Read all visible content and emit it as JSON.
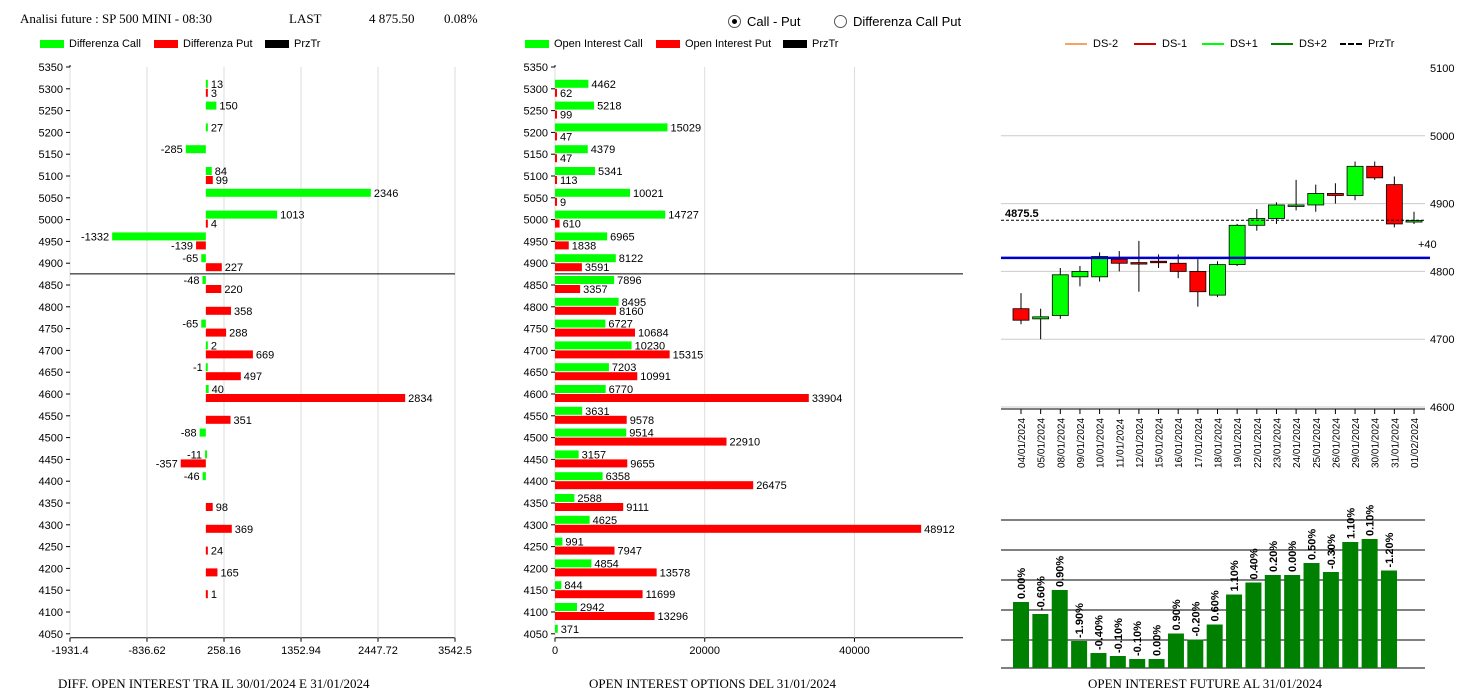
{
  "header": {
    "title": "Analisi future : SP 500 MINI - 08:30",
    "last_label": "LAST",
    "last_value": "4 875.50",
    "change": "0.08%"
  },
  "mode": {
    "options": [
      "Call - Put",
      "Differenza Call Put"
    ],
    "selected": "Call - Put"
  },
  "colors": {
    "green": "#00ff00",
    "red": "#ff0000",
    "black": "#000000",
    "dark_green": "#008000",
    "blue": "#0000cc",
    "orange": "#f4a460"
  },
  "panel1": {
    "legend": [
      "Differenza Call",
      "Differenza Put",
      "PrzTr"
    ],
    "caption": "DIFF. OPEN INTEREST TRA IL 30/01/2024 E 31/01/2024"
  },
  "panel2": {
    "legend": [
      "Open Interest Call",
      "Open Interest Put",
      "PrzTr"
    ],
    "caption": "OPEN INTEREST OPTIONS DEL 31/01/2024"
  },
  "panel3": {
    "legend": [
      "DS-2",
      "DS-1",
      "DS+1",
      "DS+2",
      "PrzTr"
    ],
    "price_label": "4875.5",
    "offset_label": "+40",
    "caption": "OPEN INTEREST FUTURE AL 31/01/2024"
  },
  "chart_data": [
    {
      "type": "bar",
      "orientation": "horizontal",
      "strikes": [
        5350,
        5300,
        5250,
        5200,
        5150,
        5100,
        5050,
        5000,
        4950,
        4900,
        4850,
        4800,
        4750,
        4700,
        4650,
        4600,
        4550,
        4500,
        4450,
        4400,
        4350,
        4300,
        4250,
        4200,
        4150,
        4100,
        4050
      ],
      "series": [
        {
          "name": "Differenza Call",
          "values": [
            null,
            13,
            150,
            27,
            -285,
            84,
            2346,
            1013,
            -1332,
            -65,
            -48,
            null,
            -65,
            2,
            -1,
            40,
            null,
            -88,
            -11,
            -46,
            null,
            null,
            null,
            null,
            null,
            null,
            null
          ]
        },
        {
          "name": "Differenza Put",
          "values": [
            null,
            3,
            null,
            null,
            null,
            99,
            null,
            4,
            -139,
            227,
            220,
            358,
            288,
            669,
            497,
            2834,
            351,
            null,
            -357,
            null,
            98,
            369,
            24,
            165,
            1,
            null,
            null
          ]
        }
      ],
      "x_ticks": [
        "-1931.4",
        "-836.62",
        "258.16",
        "1352.94",
        "2447.72",
        "3542.5"
      ],
      "xlim": [
        -1931.4,
        3542.5
      ],
      "price_line": 4875.5
    },
    {
      "type": "bar",
      "orientation": "horizontal",
      "strikes": [
        5350,
        5300,
        5250,
        5200,
        5150,
        5100,
        5050,
        5000,
        4950,
        4900,
        4850,
        4800,
        4750,
        4700,
        4650,
        4600,
        4550,
        4500,
        4450,
        4400,
        4350,
        4300,
        4250,
        4200,
        4150,
        4100,
        4050
      ],
      "series": [
        {
          "name": "Open Interest Call",
          "values": [
            null,
            4462,
            5218,
            15029,
            4379,
            5341,
            10021,
            14727,
            6965,
            8122,
            7896,
            8495,
            6727,
            10230,
            7203,
            6770,
            3631,
            9514,
            3157,
            6358,
            2588,
            4625,
            991,
            4854,
            844,
            2942,
            371
          ]
        },
        {
          "name": "Open Interest Put",
          "values": [
            null,
            62,
            99,
            47,
            47,
            113,
            9,
            610,
            1838,
            3591,
            3357,
            8160,
            10684,
            15315,
            10991,
            33904,
            9578,
            22910,
            9655,
            26475,
            9111,
            48912,
            7947,
            13578,
            11699,
            13296,
            null
          ]
        }
      ],
      "x_ticks": [
        "0",
        "20000",
        "40000"
      ],
      "xlim": [
        0,
        54500
      ],
      "price_line": 4875.5
    },
    {
      "type": "candlestick",
      "dates": [
        "04/01/2024",
        "05/01/2024",
        "08/01/2024",
        "09/01/2024",
        "10/01/2024",
        "11/01/2024",
        "12/01/2024",
        "15/01/2024",
        "16/01/2024",
        "17/01/2024",
        "18/01/2024",
        "19/01/2024",
        "22/01/2024",
        "23/01/2024",
        "24/01/2024",
        "25/01/2024",
        "26/01/2024",
        "29/01/2024",
        "30/01/2024",
        "31/01/2024",
        "01/02/2024"
      ],
      "ohlc": [
        [
          4745,
          4768,
          4722,
          4728
        ],
        [
          4730,
          4745,
          4700,
          4733
        ],
        [
          4735,
          4805,
          4730,
          4795
        ],
        [
          4792,
          4808,
          4778,
          4800
        ],
        [
          4792,
          4828,
          4785,
          4822
        ],
        [
          4818,
          4830,
          4800,
          4812
        ],
        [
          4813,
          4845,
          4770,
          4812
        ],
        [
          4815,
          4825,
          4805,
          4813
        ],
        [
          4812,
          4825,
          4790,
          4800
        ],
        [
          4800,
          4818,
          4748,
          4770
        ],
        [
          4765,
          4815,
          4762,
          4810
        ],
        [
          4810,
          4870,
          4808,
          4868
        ],
        [
          4868,
          4892,
          4860,
          4878
        ],
        [
          4878,
          4902,
          4870,
          4898
        ],
        [
          4898,
          4935,
          4890,
          4898
        ],
        [
          4898,
          4928,
          4888,
          4915
        ],
        [
          4915,
          4930,
          4900,
          4912
        ],
        [
          4912,
          4962,
          4905,
          4955
        ],
        [
          4955,
          4962,
          4935,
          4938
        ],
        [
          4928,
          4940,
          4865,
          4870
        ],
        [
          4875,
          4888,
          4870,
          4875
        ]
      ],
      "y_ticks": [
        "5100",
        "5000",
        "4900",
        "4800",
        "4700",
        "4600"
      ],
      "ylim": [
        4600,
        5100
      ],
      "price_line": 4875.5,
      "ds_line": 4820
    },
    {
      "type": "bar",
      "categories": [
        "04/01/2024",
        "05/01/2024",
        "08/01/2024",
        "09/01/2024",
        "10/01/2024",
        "11/01/2024",
        "12/01/2024",
        "15/01/2024",
        "16/01/2024",
        "17/01/2024",
        "18/01/2024",
        "19/01/2024",
        "22/01/2024",
        "23/01/2024",
        "24/01/2024",
        "25/01/2024",
        "26/01/2024",
        "29/01/2024",
        "30/01/2024",
        "31/01/2024"
      ],
      "labels": [
        "0.00%",
        "-0.60%",
        "0.90%",
        "-1.90%",
        "-0.40%",
        "-0.10%",
        "-0.10%",
        "0.00%",
        "0.90%",
        "-0.20%",
        "0.60%",
        "1.10%",
        "0.40%",
        "0.20%",
        "0.00%",
        "0.50%",
        "-0.30%",
        "1.10%",
        "0.10%",
        "-1.20%"
      ],
      "values": [
        0.44,
        0.36,
        0.52,
        0.18,
        0.1,
        0.08,
        0.06,
        0.06,
        0.23,
        0.19,
        0.29,
        0.49,
        0.57,
        0.62,
        0.62,
        0.7,
        0.64,
        0.84,
        0.86,
        0.65
      ]
    }
  ]
}
